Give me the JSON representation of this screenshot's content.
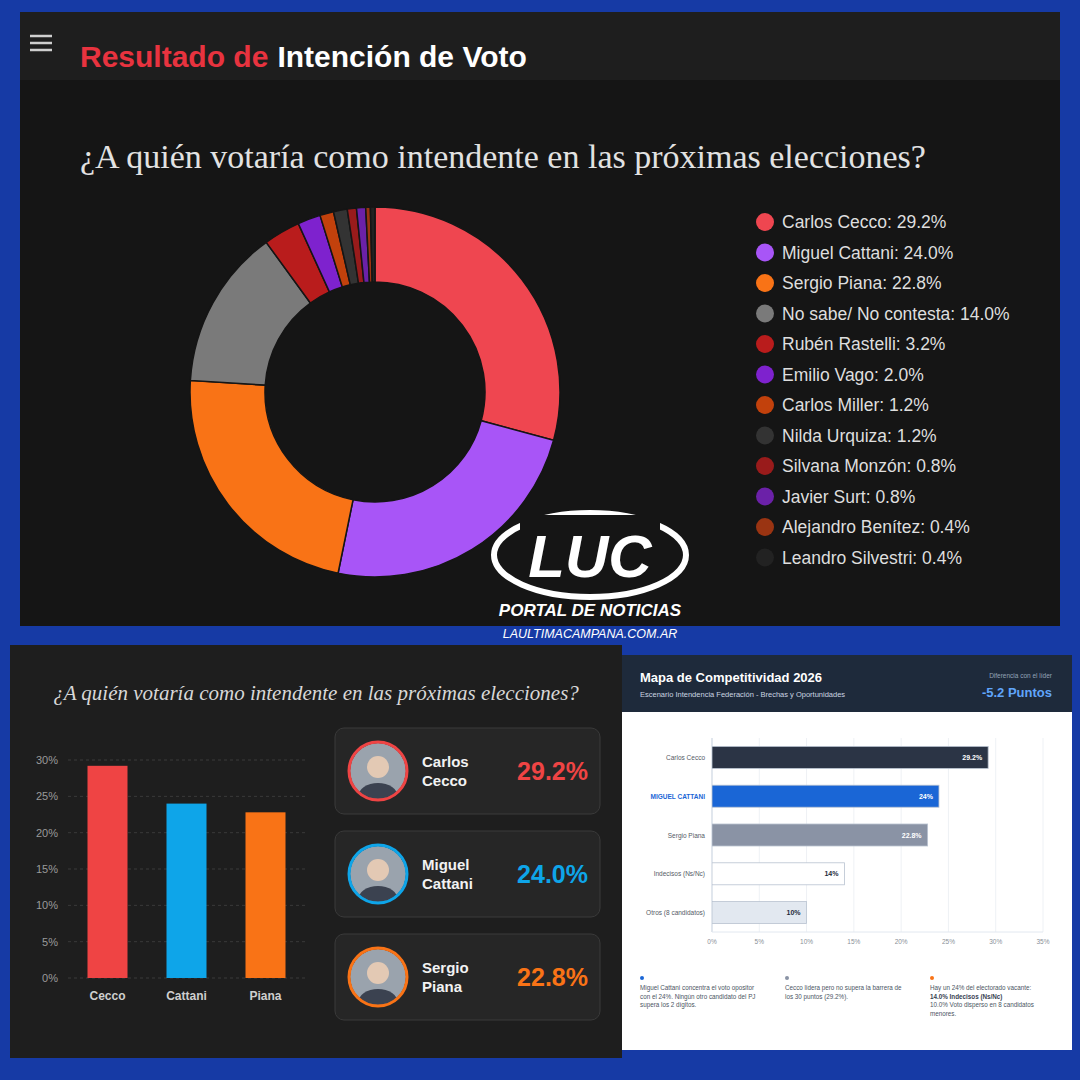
{
  "page": {
    "header_red": "Resultado de",
    "header_white": "Intención de Voto",
    "logo": "LUC",
    "logo_sub": "PORTAL DE NOTICIAS",
    "logo_url": "LAULTIMACAMPANA.COM.AR"
  },
  "chart_data": [
    {
      "type": "pie",
      "title": "¿A quién votaría como intendente en las próximas elecciones?",
      "categories": [
        "Carlos Cecco",
        "Miguel Cattani",
        "Sergio Piana",
        "No sabe/ No contesta",
        "Rubén Rastelli",
        "Emilio Vago",
        "Carlos Miller",
        "Nilda Urquiza",
        "Silvana Monzón",
        "Javier Surt",
        "Alejandro Benítez",
        "Leandro Silvestri"
      ],
      "values": [
        29.2,
        24.0,
        22.8,
        14.0,
        3.2,
        2.0,
        1.2,
        1.2,
        0.8,
        0.8,
        0.4,
        0.4
      ],
      "value_labels": [
        "29.2%",
        "24.0%",
        "22.8%",
        "14.0%",
        "3.2%",
        "2.0%",
        "1.2%",
        "1.2%",
        "0.8%",
        "0.8%",
        "0.4%",
        "0.4%"
      ],
      "colors": [
        "#ef4650",
        "#a855f7",
        "#f97316",
        "#7a7a7a",
        "#b91c1c",
        "#7e22ce",
        "#c2410c",
        "#333333",
        "#991b1b",
        "#6b21a8",
        "#9a3412",
        "#222222"
      ],
      "legend": "right"
    },
    {
      "type": "bar",
      "title": "¿A quién votaría como intendente en las próximas elecciones?",
      "categories": [
        "Cecco",
        "Cattani",
        "Piana"
      ],
      "values": [
        29.2,
        24.0,
        22.8
      ],
      "value_labels": [
        "29.2%",
        "24.0%",
        "22.8%"
      ],
      "colors": [
        "#ef4444",
        "#0ea5e9",
        "#f97316"
      ],
      "annotations": [
        "Carlos Cecco",
        "Miguel Cattani",
        "Sergio Piana"
      ],
      "ylim": [
        0,
        30
      ],
      "yticks": [
        {
          "value": 0,
          "label": "0%"
        },
        {
          "value": 5,
          "label": "5%"
        },
        {
          "value": 10,
          "label": "10%"
        },
        {
          "value": 15,
          "label": "15%"
        },
        {
          "value": 20,
          "label": "20%"
        },
        {
          "value": 25,
          "label": "25%"
        },
        {
          "value": 30,
          "label": "30%"
        }
      ],
      "grid": true
    },
    {
      "type": "bar",
      "title": "Mapa de Competitividad 2026",
      "subtitle": "Escenario Intendencia Federación - Brechas y Oportunidades",
      "orientation": "horizontal",
      "categories": [
        "Carlos Cecco",
        "MIGUEL CATTANI",
        "Sergio Piana",
        "Indecisos (Ns/Nc)",
        "Otros (8 candidatos)"
      ],
      "values": [
        29.2,
        24,
        22.8,
        14,
        10
      ],
      "value_labels": [
        "29.2%",
        "24%",
        "22.8%",
        "14%",
        "10%"
      ],
      "colors": [
        "#2b3445",
        "#1a66d6",
        "#8a93a5",
        "#ffffff",
        "#e2e8f0"
      ],
      "data_labels": true,
      "grid": true,
      "xlim": [
        0,
        35
      ],
      "xticks": [
        {
          "value": 0,
          "label": "0%"
        },
        {
          "value": 5,
          "label": "5%"
        },
        {
          "value": 10,
          "label": "10%"
        },
        {
          "value": 15,
          "label": "15%"
        },
        {
          "value": 20,
          "label": "20%"
        },
        {
          "value": 25,
          "label": "25%"
        },
        {
          "value": 30,
          "label": "30%"
        },
        {
          "value": 35,
          "label": "35%"
        }
      ],
      "annotations": [
        "Diferencia con el líder",
        "-5.2 Puntos",
        "Miguel Cattani concentra el voto opositor con el 24%. Ningún otro candidato del PJ supera los 2 dígitos.",
        "Cecco lidera pero no supera la barrera de los 30 puntos (29.2%).",
        "Hay un 24% del electorado vacante:",
        "14.0% Indecisos (Ns/Nc)",
        "10.0% Voto disperso en 8 candidatos menores."
      ]
    }
  ]
}
